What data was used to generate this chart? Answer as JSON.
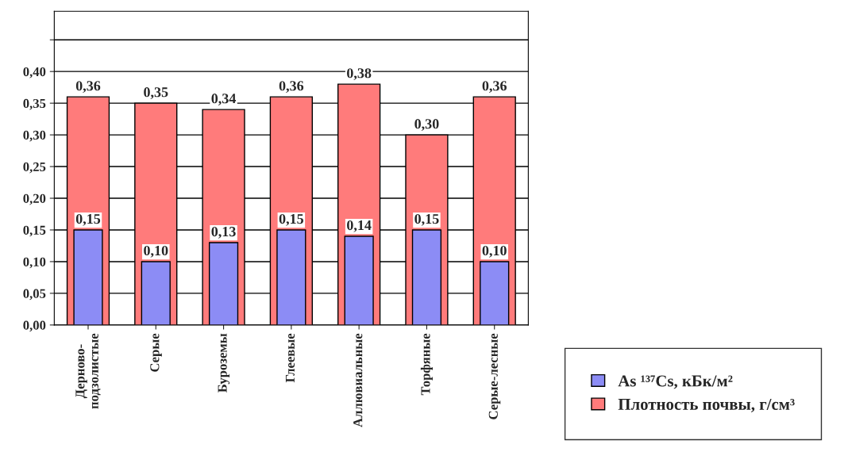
{
  "chart_data": {
    "type": "bar",
    "categories": [
      "Дерново-\nподзолистые",
      "Серые",
      "Буроземы",
      "Глеевые",
      "Аллювиальные",
      "Торфяные",
      "Серые-лесные"
    ],
    "series": [
      {
        "name": "As ¹³⁷Cs, кБк/м²",
        "color": "#8c8cf5",
        "values": [
          0.15,
          0.1,
          0.13,
          0.15,
          0.14,
          0.15,
          0.1
        ],
        "value_labels": [
          "0,15",
          "0,10",
          "0,13",
          "0,15",
          "0,14",
          "0,15",
          "0,10"
        ]
      },
      {
        "name": "Плотность почвы, г/см³",
        "color": "#ff7b7b",
        "values": [
          0.36,
          0.35,
          0.34,
          0.36,
          0.38,
          0.3,
          0.36
        ],
        "value_labels": [
          "0,36",
          "0,35",
          "0,34",
          "0,36",
          "0,38",
          "0,30",
          "0,36"
        ]
      }
    ],
    "ylim": [
      0,
      0.495
    ],
    "yticks": [
      {
        "value": 0,
        "label": "0,00"
      },
      {
        "value": 0.05,
        "label": "0,05"
      },
      {
        "value": 0.1,
        "label": "0,10"
      },
      {
        "value": 0.15,
        "label": "0,15"
      },
      {
        "value": 0.2,
        "label": "0,20"
      },
      {
        "value": 0.25,
        "label": "0,25"
      },
      {
        "value": 0.3,
        "label": "0,30"
      },
      {
        "value": 0.35,
        "label": "0,35"
      },
      {
        "value": 0.4,
        "label": "0,40"
      },
      {
        "value": 0.45,
        "label": null
      }
    ],
    "grid": "y",
    "legend": "right"
  }
}
